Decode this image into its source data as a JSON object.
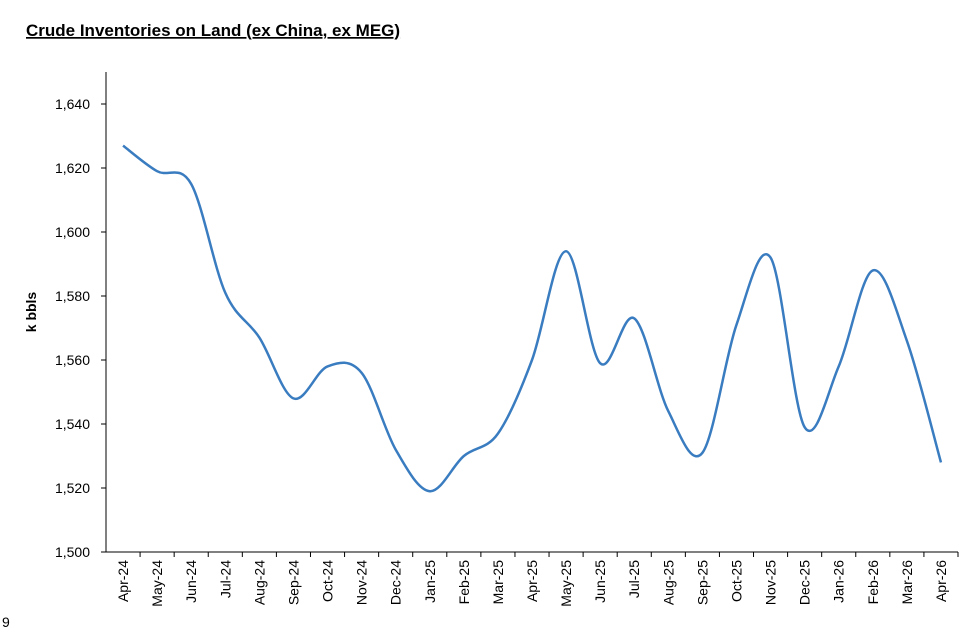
{
  "chart_data": {
    "type": "line",
    "title": "Crude Inventories on Land (ex China, ex MEG)",
    "y_label": "k bbls",
    "edge_text": "9",
    "categories": [
      "Apr-24",
      "May-24",
      "Jun-24",
      "Jul-24",
      "Aug-24",
      "Sep-24",
      "Oct-24",
      "Nov-24",
      "Dec-24",
      "Jan-25",
      "Feb-25",
      "Mar-25",
      "Apr-25",
      "May-25",
      "Jun-25",
      "Jul-25",
      "Aug-25",
      "Sep-25",
      "Oct-25",
      "Nov-25",
      "Dec-25",
      "Jan-26",
      "Feb-26",
      "Mar-26",
      "Apr-26"
    ],
    "series": [
      {
        "name": "Crude Inventories on Land",
        "color": "#3a7cc0",
        "values": [
          1627,
          1619,
          1615,
          1581,
          1567,
          1548,
          1558,
          1556,
          1532,
          1519,
          1530,
          1537,
          1560,
          1594,
          1559,
          1573,
          1544,
          1531,
          1571,
          1592,
          1539,
          1558,
          1588,
          1566,
          1528
        ]
      }
    ],
    "ylim": [
      1500,
      1650
    ],
    "yticks": [
      {
        "value": 1500,
        "label": "1,500"
      },
      {
        "value": 1520,
        "label": "1,520"
      },
      {
        "value": 1540,
        "label": "1,540"
      },
      {
        "value": 1560,
        "label": "1,560"
      },
      {
        "value": 1580,
        "label": "1,580"
      },
      {
        "value": 1600,
        "label": "1,600"
      },
      {
        "value": 1620,
        "label": "1,620"
      },
      {
        "value": 1640,
        "label": "1,640"
      }
    ],
    "grid": false
  }
}
